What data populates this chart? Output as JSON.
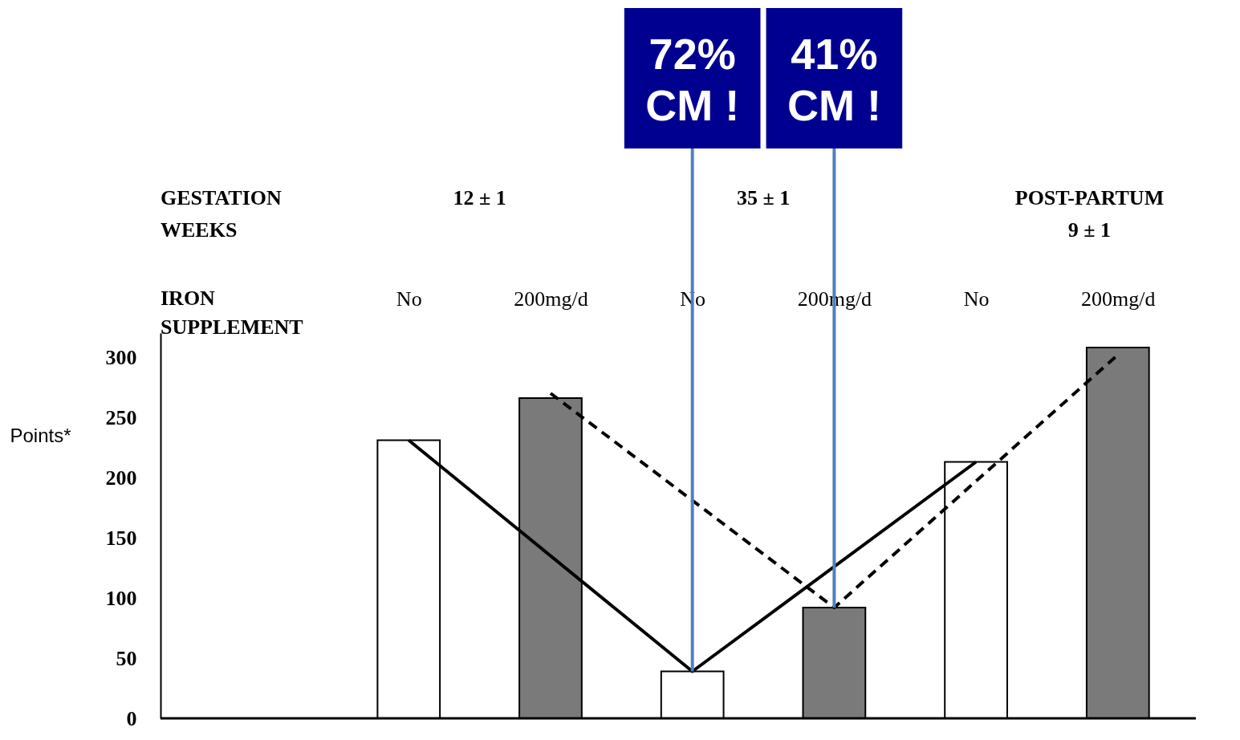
{
  "chart_data": {
    "type": "bar",
    "categories": [
      "No",
      "200mg/d",
      "No",
      "200mg/d",
      "No",
      "200mg/d"
    ],
    "xlabel": "IRON\nSUPPLEMENT",
    "ylabel": "Points*",
    "ylim": [
      0,
      320
    ],
    "yticks": [
      0,
      50,
      100,
      150,
      200,
      250,
      300
    ],
    "grid": false,
    "series": [
      {
        "colors": [
          "#ffffff",
          "#7a7a7a",
          "#ffffff",
          "#7a7a7a",
          "#ffffff",
          "#7a7a7a"
        ],
        "values": [
          231,
          266,
          39,
          92,
          213,
          308
        ]
      },
      {
        "type": "line",
        "color": "#000000",
        "line_style": "solid",
        "values": [
          231,
          null,
          39,
          null,
          213,
          null
        ]
      },
      {
        "type": "line",
        "color": "#000000",
        "line_style": "dashed",
        "values": [
          null,
          270,
          null,
          92,
          null,
          302
        ]
      }
    ],
    "annotations": [
      "GESTATION\nWEEKS",
      "12 ± 1",
      "35 ± 1",
      "POST-PARTUM\n9 ± 1",
      "72%\nCM !",
      "41%\nCM !"
    ]
  }
}
